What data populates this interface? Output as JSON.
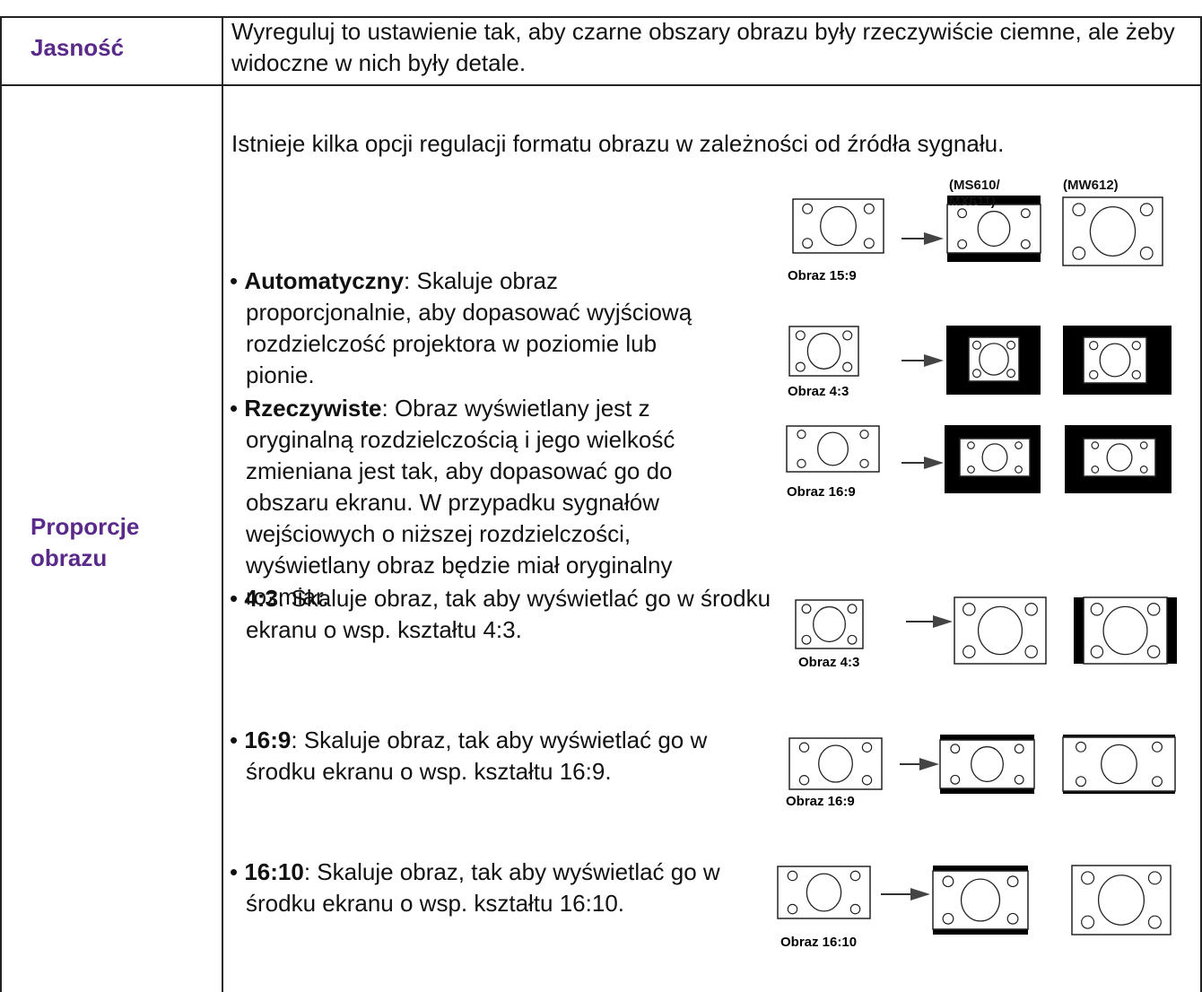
{
  "rows": [
    {
      "label": "Jasność",
      "text": "Wyreguluj to ustawienie tak, aby czarne obszary obrazu były rzeczywiście ciemne, ale żeby widoczne w nich były detale."
    },
    {
      "label": "Proporcje obrazu",
      "intro": "Istnieje kilka opcji regulacji formatu obrazu w zależności od źródła sygnału.",
      "column_labels": [
        "(MS610/ MX611)",
        "(MW612)"
      ],
      "items": [
        {
          "term": "Automatyczny",
          "desc": ": Skaluje obraz proporcjonalnie, aby dopasować wyjściową rozdzielczość projektora w poziomie lub pionie.",
          "figures": [
            "Obraz 15:9"
          ]
        },
        {
          "term": "Rzeczywiste",
          "desc": ": Obraz wyświetlany jest z oryginalną rozdzielczością i jego wielkość zmieniana jest tak, aby dopasować go do obszaru ekranu. W przypadku sygnałów wejściowych o niższej rozdzielczości, wyświetlany obraz będzie miał oryginalny rozmiar.",
          "figures": [
            "Obraz 4:3",
            "Obraz 16:9"
          ]
        },
        {
          "term": "4:3",
          "desc": ": Skaluje obraz, tak aby wyświetlać go w środku ekranu o wsp. kształtu 4:3.",
          "figures": [
            "Obraz 4:3"
          ]
        },
        {
          "term": "16:9",
          "desc": ": Skaluje obraz, tak aby wyświetlać go w środku ekranu o wsp. kształtu 16:9.",
          "figures": [
            "Obraz 16:9"
          ]
        },
        {
          "term": "16:10",
          "desc": ": Skaluje obraz, tak aby wyświetlać go w środku ekranu o wsp. kształtu 16:10.",
          "figures": [
            "Obraz 16:10"
          ]
        }
      ]
    }
  ]
}
